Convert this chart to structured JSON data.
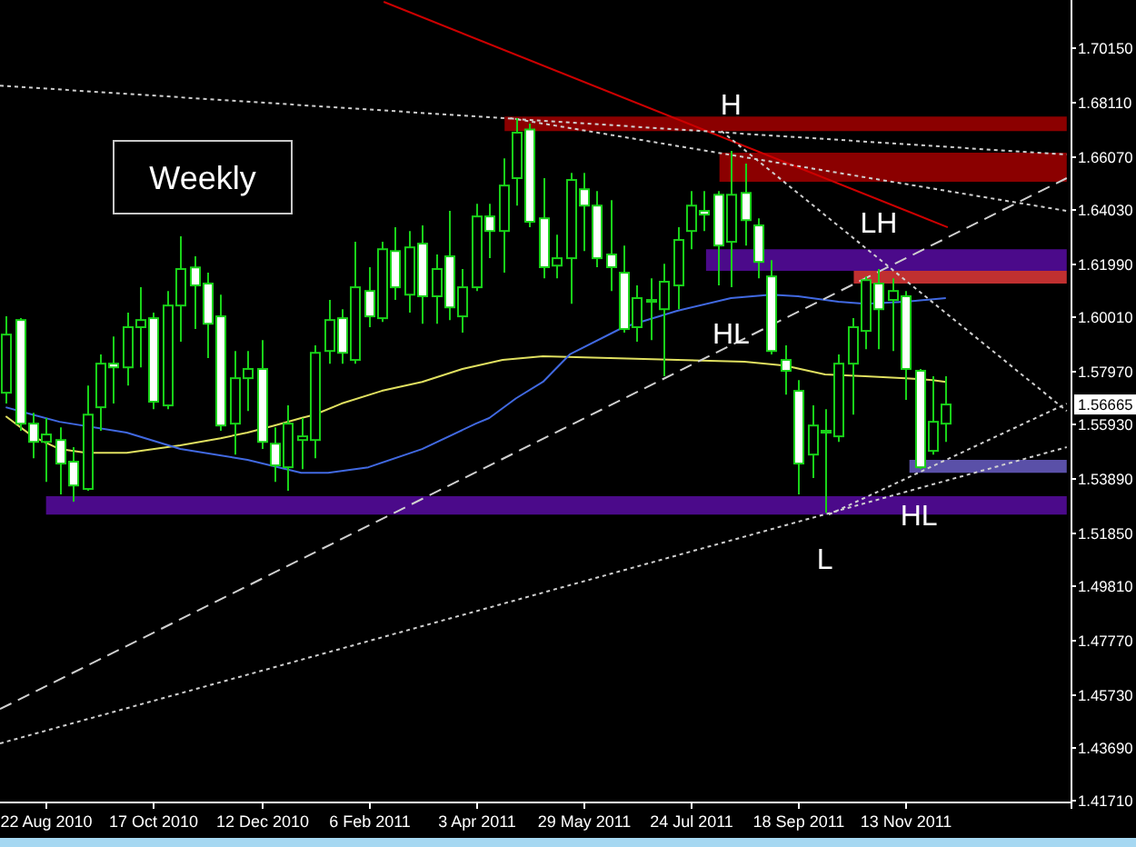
{
  "chart_data": {
    "type": "candlestick",
    "title": "Weekly",
    "xlim": [
      "2010-07-29",
      "2012-02-07"
    ],
    "xticks": [
      {
        "value": "2010-08-22",
        "label": "22 Aug 2010"
      },
      {
        "value": "2010-10-17",
        "label": "17 Oct 2010"
      },
      {
        "value": "2010-12-12",
        "label": "12 Dec 2010"
      },
      {
        "value": "2011-02-06",
        "label": "6 Feb 2011"
      },
      {
        "value": "2011-04-03",
        "label": "3 Apr 2011"
      },
      {
        "value": "2011-05-29",
        "label": "29 May 2011"
      },
      {
        "value": "2011-07-24",
        "label": "24 Jul 2011"
      },
      {
        "value": "2011-09-18",
        "label": "18 Sep 2011"
      },
      {
        "value": "2011-11-13",
        "label": "13 Nov 2011"
      }
    ],
    "ylim": [
      1.4164,
      1.7197
    ],
    "yticks": [
      {
        "value": 1.7015,
        "label": "1.70150"
      },
      {
        "value": 1.6811,
        "label": "1.68110"
      },
      {
        "value": 1.6607,
        "label": "1.66070"
      },
      {
        "value": 1.6403,
        "label": "1.64030"
      },
      {
        "value": 1.6199,
        "label": "1.61990"
      },
      {
        "value": 1.6001,
        "label": "1.60010"
      },
      {
        "value": 1.5797,
        "label": "1.57970"
      },
      {
        "value": 1.5593,
        "label": "1.55930"
      },
      {
        "value": 1.5389,
        "label": "1.53890"
      },
      {
        "value": 1.5185,
        "label": "1.51850"
      },
      {
        "value": 1.4981,
        "label": "1.49810"
      },
      {
        "value": 1.4777,
        "label": "1.47770"
      },
      {
        "value": 1.4573,
        "label": "1.45730"
      },
      {
        "value": 1.4369,
        "label": "1.43690"
      },
      {
        "value": 1.4171,
        "label": "1.41710"
      }
    ],
    "series": [
      {
        "color": "#19d219",
        "x": [
          "2010-08-01",
          "2010-08-08",
          "2010-08-15",
          "2010-08-22",
          "2010-08-29",
          "2010-09-05",
          "2010-09-12",
          "2010-09-19",
          "2010-09-26",
          "2010-10-03",
          "2010-10-10",
          "2010-10-17",
          "2010-10-24",
          "2010-10-31",
          "2010-11-07",
          "2010-11-14",
          "2010-11-21",
          "2010-11-28",
          "2010-12-05",
          "2010-12-12",
          "2010-12-19",
          "2010-12-26",
          "2011-01-02",
          "2011-01-09",
          "2011-01-16",
          "2011-01-23",
          "2011-01-30",
          "2011-02-06",
          "2011-02-13",
          "2011-02-20",
          "2011-02-27",
          "2011-03-06",
          "2011-03-13",
          "2011-03-20",
          "2011-03-27",
          "2011-04-03",
          "2011-04-10",
          "2011-04-17",
          "2011-04-24",
          "2011-05-01",
          "2011-05-08",
          "2011-05-15",
          "2011-05-22",
          "2011-05-29",
          "2011-06-05",
          "2011-06-12",
          "2011-06-19",
          "2011-06-26",
          "2011-07-03",
          "2011-07-10",
          "2011-07-17",
          "2011-07-24",
          "2011-07-31",
          "2011-08-07",
          "2011-08-14",
          "2011-08-21",
          "2011-08-28",
          "2011-09-04",
          "2011-09-11",
          "2011-09-18",
          "2011-09-25",
          "2011-10-02",
          "2011-10-09",
          "2011-10-16",
          "2011-10-23",
          "2011-10-30",
          "2011-11-06",
          "2011-11-13",
          "2011-11-20",
          "2011-11-27",
          "2011-12-04"
        ],
        "ohlc": [
          [
            1.5711,
            1.6,
            1.567,
            1.5931
          ],
          [
            1.5986,
            1.5993,
            1.5567,
            1.5594
          ],
          [
            1.5594,
            1.5635,
            1.5463,
            1.5525
          ],
          [
            1.5525,
            1.5615,
            1.5374,
            1.5553
          ],
          [
            1.5532,
            1.558,
            1.5326,
            1.5443
          ],
          [
            1.545,
            1.5505,
            1.5299,
            1.536
          ],
          [
            1.5347,
            1.5738,
            1.534,
            1.5628
          ],
          [
            1.5656,
            1.5856,
            1.5567,
            1.5821
          ],
          [
            1.5821,
            1.5924,
            1.567,
            1.5807
          ],
          [
            1.5807,
            1.6014,
            1.5738,
            1.5959
          ],
          [
            1.5959,
            1.611,
            1.5807,
            1.5986
          ],
          [
            1.5993,
            1.6014,
            1.5649,
            1.5677
          ],
          [
            1.5663,
            1.6096,
            1.5649,
            1.6041
          ],
          [
            1.6041,
            1.6303,
            1.5904,
            1.6179
          ],
          [
            1.6185,
            1.6227,
            1.5952,
            1.6117
          ],
          [
            1.6124,
            1.6165,
            1.5842,
            1.5972
          ],
          [
            1.6,
            1.6082,
            1.5567,
            1.5587
          ],
          [
            1.5594,
            1.5869,
            1.5477,
            1.5766
          ],
          [
            1.5766,
            1.5869,
            1.5642,
            1.5801
          ],
          [
            1.5801,
            1.591,
            1.5498,
            1.5525
          ],
          [
            1.5518,
            1.558,
            1.5374,
            1.5436
          ],
          [
            1.5429,
            1.5663,
            1.534,
            1.5594
          ],
          [
            1.5532,
            1.5615,
            1.5422,
            1.5546
          ],
          [
            1.5532,
            1.589,
            1.5463,
            1.5862
          ],
          [
            1.5869,
            1.6062,
            1.5821,
            1.5986
          ],
          [
            1.5993,
            1.6027,
            1.5821,
            1.5862
          ],
          [
            1.5835,
            1.6282,
            1.5821,
            1.611
          ],
          [
            1.6096,
            1.6186,
            1.5959,
            1.6
          ],
          [
            1.5993,
            1.6282,
            1.5979,
            1.6254
          ],
          [
            1.6247,
            1.6337,
            1.6062,
            1.611
          ],
          [
            1.6082,
            1.6323,
            1.6014,
            1.6261
          ],
          [
            1.6275,
            1.6344,
            1.5972,
            1.6076
          ],
          [
            1.6076,
            1.6234,
            1.5972,
            1.6179
          ],
          [
            1.6227,
            1.6399,
            1.5986,
            1.6034
          ],
          [
            1.6,
            1.6179,
            1.5938,
            1.611
          ],
          [
            1.611,
            1.6426,
            1.6096,
            1.6378
          ],
          [
            1.6378,
            1.6426,
            1.622,
            1.6323
          ],
          [
            1.6323,
            1.6598,
            1.6165,
            1.6495
          ],
          [
            1.6523,
            1.675,
            1.6419,
            1.6695
          ],
          [
            1.6707,
            1.6729,
            1.6337,
            1.6358
          ],
          [
            1.6371,
            1.6523,
            1.6144,
            1.6186
          ],
          [
            1.6192,
            1.6309,
            1.6144,
            1.622
          ],
          [
            1.622,
            1.6543,
            1.6048,
            1.6516
          ],
          [
            1.6481,
            1.6543,
            1.6247,
            1.6419
          ],
          [
            1.6419,
            1.6474,
            1.6186,
            1.622
          ],
          [
            1.6234,
            1.644,
            1.6096,
            1.6186
          ],
          [
            1.6165,
            1.6268,
            1.5938,
            1.5952
          ],
          [
            1.5959,
            1.6117,
            1.5904,
            1.6069
          ],
          [
            1.6055,
            1.6144,
            1.591,
            1.6062
          ],
          [
            1.6027,
            1.6199,
            1.5773,
            1.6131
          ],
          [
            1.6117,
            1.6337,
            1.6027,
            1.6289
          ],
          [
            1.6323,
            1.6474,
            1.6254,
            1.6419
          ],
          [
            1.6399,
            1.6474,
            1.6323,
            1.6385
          ],
          [
            1.646,
            1.6474,
            1.6117,
            1.6268
          ],
          [
            1.6282,
            1.6626,
            1.611,
            1.646
          ],
          [
            1.6467,
            1.6578,
            1.6268,
            1.6364
          ],
          [
            1.6344,
            1.6371,
            1.6144,
            1.6206
          ],
          [
            1.6151,
            1.6213,
            1.5856,
            1.5869
          ],
          [
            1.5835,
            1.589,
            1.5704,
            1.5794
          ],
          [
            1.5718,
            1.5759,
            1.5326,
            1.5443
          ],
          [
            1.5477,
            1.5663,
            1.5388,
            1.5587
          ],
          [
            1.556,
            1.5649,
            1.5257,
            1.5567
          ],
          [
            1.5546,
            1.5856,
            1.5525,
            1.5821
          ],
          [
            1.5821,
            1.5993,
            1.5628,
            1.5959
          ],
          [
            1.5945,
            1.6151,
            1.5876,
            1.6137
          ],
          [
            1.6124,
            1.6179,
            1.5876,
            1.6027
          ],
          [
            1.6062,
            1.6144,
            1.5869,
            1.6096
          ],
          [
            1.6076,
            1.6096,
            1.5684,
            1.5801
          ],
          [
            1.5794,
            1.5801,
            1.5422,
            1.5429
          ],
          [
            1.5491,
            1.5773,
            1.5477,
            1.5601
          ],
          [
            1.5594,
            1.5773,
            1.5525,
            1.56665
          ]
        ],
        "colors": [
          "#000000",
          "#ffffff",
          "#ffffff",
          "#000000",
          "#ffffff",
          "#ffffff",
          "#000000",
          "#000000",
          "#ffffff",
          "#000000",
          "#000000",
          "#ffffff",
          "#000000",
          "#000000",
          "#ffffff",
          "#ffffff",
          "#ffffff",
          "#000000",
          "#000000",
          "#ffffff",
          "#ffffff",
          "#000000",
          "#000000",
          "#000000",
          "#000000",
          "#ffffff",
          "#000000",
          "#ffffff",
          "#000000",
          "#ffffff",
          "#000000",
          "#ffffff",
          "#000000",
          "#ffffff",
          "#000000",
          "#000000",
          "#ffffff",
          "#000000",
          "#000000",
          "#ffffff",
          "#ffffff",
          "#000000",
          "#000000",
          "#ffffff",
          "#ffffff",
          "#ffffff",
          "#ffffff",
          "#000000",
          "#000000",
          "#000000",
          "#000000",
          "#000000",
          "#ffffff",
          "#ffffff",
          "#000000",
          "#ffffff",
          "#ffffff",
          "#ffffff",
          "#ffffff",
          "#ffffff",
          "#000000",
          "#000000",
          "#000000",
          "#000000",
          "#000000",
          "#ffffff",
          "#000000",
          "#ffffff",
          "#ffffff",
          "#000000",
          "#000000"
        ]
      },
      {
        "type": "line",
        "color": "#e0e060",
        "x": [
          "2010-08-01",
          "2010-08-15",
          "2010-08-29",
          "2010-09-12",
          "2010-10-03",
          "2010-10-31",
          "2010-11-21",
          "2010-12-05",
          "2010-12-19",
          "2011-01-02",
          "2011-01-09",
          "2011-01-23",
          "2011-02-13",
          "2011-03-06",
          "2011-03-27",
          "2011-04-17",
          "2011-05-08",
          "2011-06-12",
          "2011-07-17",
          "2011-08-21",
          "2011-09-11",
          "2011-10-02",
          "2011-10-23",
          "2011-11-13",
          "2011-11-27",
          "2011-12-04"
        ],
        "values": [
          1.5622,
          1.5546,
          1.5498,
          1.5484,
          1.5484,
          1.5512,
          1.5539,
          1.556,
          1.5587,
          1.5615,
          1.5628,
          1.567,
          1.5718,
          1.5752,
          1.5801,
          1.5835,
          1.5849,
          1.5842,
          1.5835,
          1.5828,
          1.5814,
          1.578,
          1.5773,
          1.5766,
          1.5759,
          1.5752
        ]
      },
      {
        "type": "line",
        "color": "#4169e1",
        "x": [
          "2010-08-01",
          "2010-08-15",
          "2010-08-29",
          "2010-10-03",
          "2010-10-31",
          "2010-12-05",
          "2011-01-02",
          "2011-01-16",
          "2011-02-06",
          "2011-03-06",
          "2011-04-03",
          "2011-04-10",
          "2011-04-24",
          "2011-05-08",
          "2011-05-22",
          "2011-06-19",
          "2011-07-17",
          "2011-08-14",
          "2011-09-04",
          "2011-09-18",
          "2011-10-09",
          "2011-10-23",
          "2011-11-13",
          "2011-12-04"
        ],
        "values": [
          1.5656,
          1.5628,
          1.5601,
          1.556,
          1.5498,
          1.5457,
          1.5408,
          1.5408,
          1.5429,
          1.5498,
          1.5594,
          1.5615,
          1.569,
          1.5752,
          1.5856,
          1.5959,
          1.6021,
          1.6069,
          1.6082,
          1.6076,
          1.6055,
          1.6048,
          1.6055,
          1.6069
        ]
      },
      {
        "type": "line",
        "color": "#8b0000",
        "x": [
          "2011-04-18",
          "2012-02-05"
        ],
        "values": [
          null,
          null
        ],
        "lower": [
          1.6701,
          1.6701
        ],
        "upper": [
          1.6756,
          1.6756
        ]
      },
      {
        "type": "line",
        "color": "#8b0000",
        "x": [
          "2011-08-08",
          "2012-02-05"
        ],
        "values": [
          null,
          null
        ],
        "lower": [
          1.6509,
          1.6509
        ],
        "upper": [
          1.6619,
          1.6619
        ]
      },
      {
        "type": "line",
        "color": "#4b0a8a",
        "x": [
          "2011-08-01",
          "2012-02-05"
        ],
        "values": [
          null,
          null
        ],
        "lower": [
          1.6172,
          1.6172
        ],
        "upper": [
          1.6254,
          1.6254
        ]
      },
      {
        "type": "line",
        "color": "#c03030",
        "x": [
          "2011-10-17",
          "2012-02-05"
        ],
        "values": [
          null,
          null
        ],
        "lower": [
          1.6124,
          1.6124
        ],
        "upper": [
          1.6172,
          1.6172
        ]
      },
      {
        "type": "line",
        "color": "#5a50a8",
        "x": [
          "2011-11-15",
          "2012-02-05"
        ],
        "values": [
          null,
          null
        ],
        "lower": [
          1.5408,
          1.5408
        ],
        "upper": [
          1.5457,
          1.5457
        ]
      },
      {
        "type": "line",
        "color": "#4b0a8a",
        "x": [
          "2010-08-22",
          "2012-02-05"
        ],
        "values": [
          null,
          null
        ],
        "lower": [
          1.525,
          1.525
        ],
        "upper": [
          1.5319,
          1.5319
        ]
      },
      {
        "type": "line",
        "color": "#cc0000",
        "x": [
          "2011-02-14",
          "2011-12-05"
        ],
        "values": [
          1.719,
          1.6337
        ]
      },
      {
        "type": "line",
        "color": "#d0d0d0",
        "line_style": "dotted",
        "x": [
          "2010-07-29",
          "2012-02-05"
        ],
        "values": [
          1.6873,
          1.6612
        ]
      },
      {
        "type": "line",
        "color": "#d0d0d0",
        "line_style": "dotted",
        "x": [
          "2011-04-21",
          "2012-02-05"
        ],
        "values": [
          1.675,
          1.6399
        ]
      },
      {
        "type": "line",
        "color": "#d0d0d0",
        "line_style": "dotted",
        "x": [
          "2011-08-09",
          "2012-02-05"
        ],
        "values": [
          1.6701,
          1.5642
        ]
      },
      {
        "type": "line",
        "color": "#d0d0d0",
        "line_style": "dashed",
        "x": [
          "2010-07-29",
          "2012-02-05"
        ],
        "values": [
          1.4514,
          1.6523
        ]
      },
      {
        "type": "line",
        "color": "#d0d0d0",
        "line_style": "dotted",
        "x": [
          "2010-07-29",
          "2012-02-05"
        ],
        "values": [
          1.4384,
          1.5505
        ]
      },
      {
        "type": "line",
        "color": "#d0d0d0",
        "line_style": "dotted",
        "x": [
          "2011-10-04",
          "2012-02-05"
        ],
        "values": [
          1.525,
          1.567
        ]
      }
    ],
    "annotations": [
      {
        "text": "H",
        "x": "2011-08-14",
        "y": 1.6626
      },
      {
        "text": "LH",
        "x": "2011-10-30",
        "y": 1.6179
      },
      {
        "text": "HL",
        "x": "2011-08-14",
        "y": 1.611
      },
      {
        "text": "L",
        "x": "2011-10-02",
        "y": 1.5257
      },
      {
        "text": "HL",
        "x": "2011-11-20",
        "y": 1.5422
      },
      {
        "text": "1.56665",
        "y": 1.56665
      }
    ]
  }
}
